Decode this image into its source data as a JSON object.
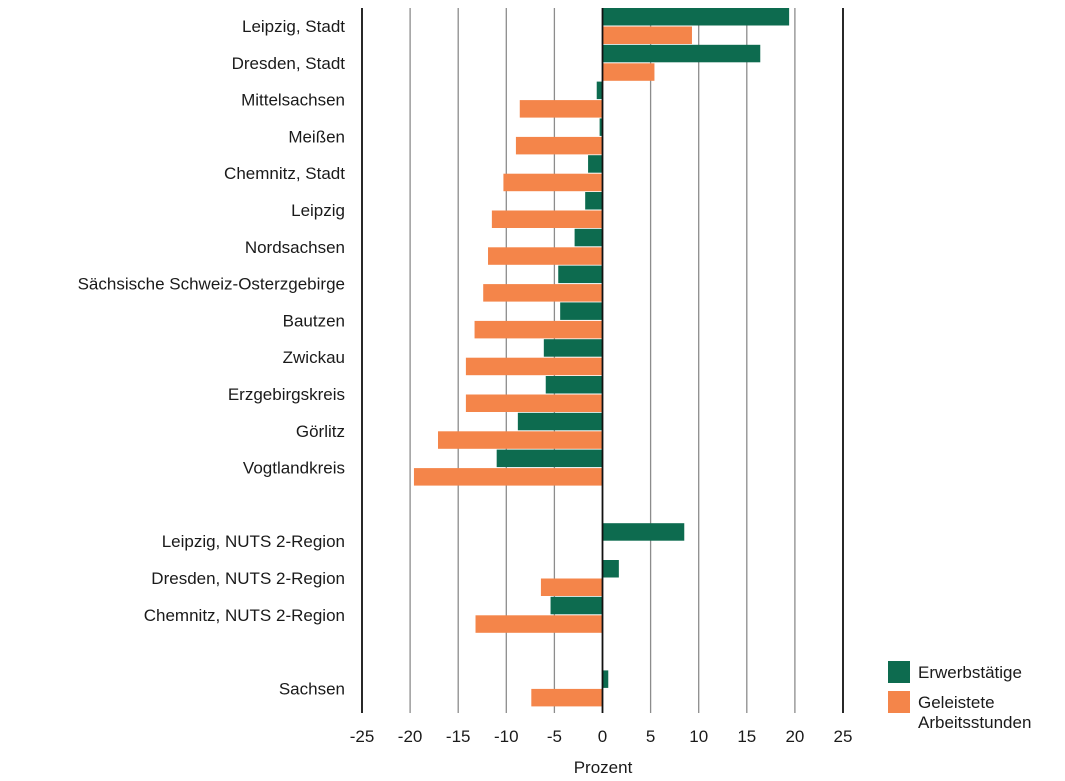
{
  "chart_data": {
    "type": "bar",
    "orientation": "horizontal",
    "categories": [
      "Leipzig, Stadt",
      "Dresden, Stadt",
      "Mittelsachsen",
      "Meißen",
      "Chemnitz, Stadt",
      "Leipzig",
      "Nordsachsen",
      "Sächsische Schweiz-Osterzgebirge",
      "Bautzen",
      "Zwickau",
      "Erzgebirgskreis",
      "Görlitz",
      "Vogtlandkreis",
      "Leipzig, NUTS 2-Region",
      "Dresden, NUTS 2-Region",
      "Chemnitz, NUTS 2-Region",
      "Sachsen"
    ],
    "series": [
      {
        "name": "Erwerbstätige",
        "color": "#0d6b4f",
        "values": [
          19.4,
          16.4,
          -0.6,
          -0.3,
          -1.5,
          -1.8,
          -2.9,
          -4.6,
          -4.4,
          -6.1,
          -5.9,
          -8.8,
          -11.0,
          8.5,
          1.7,
          -5.4,
          0.6
        ]
      },
      {
        "name": "Geleistete Arbeitsstunden",
        "color": "#f4854a",
        "values": [
          9.3,
          5.4,
          -8.6,
          -9.0,
          -10.3,
          -11.5,
          -11.9,
          -12.4,
          -13.3,
          -14.2,
          -14.2,
          -17.1,
          -19.6,
          0,
          -6.4,
          -13.2,
          -7.4
        ]
      }
    ],
    "xlabel": "Prozent",
    "xlim": [
      -25,
      25
    ],
    "xticks": [
      "-25",
      "-20",
      "-15",
      "-10",
      "-5",
      "0",
      "5",
      "10",
      "15",
      "20",
      "25"
    ],
    "grid": "vertical",
    "legend_position": "bottom-right"
  }
}
